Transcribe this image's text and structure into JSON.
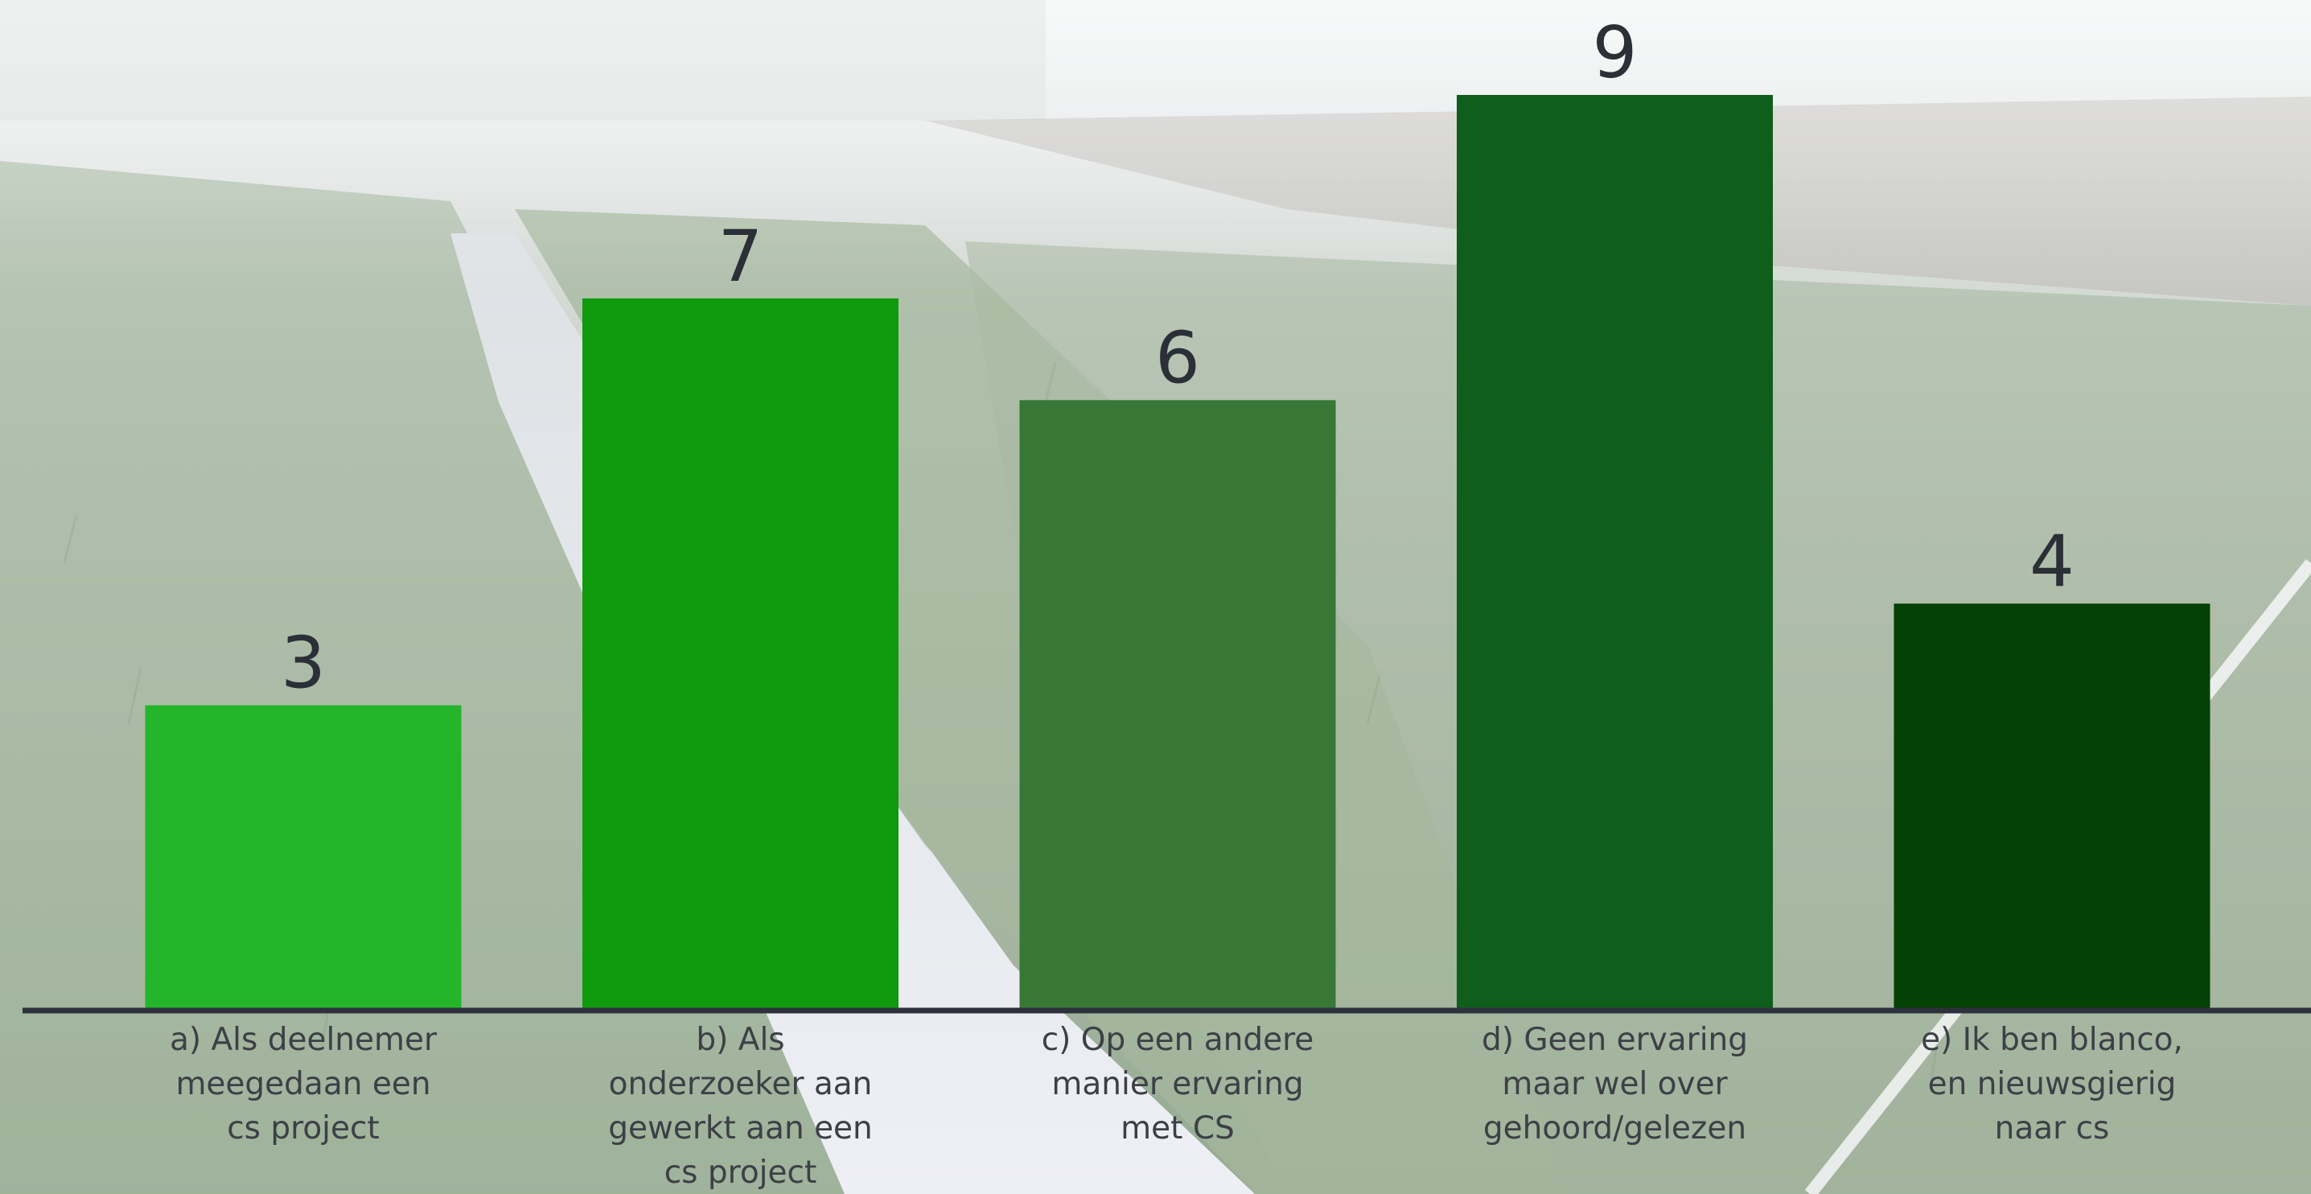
{
  "chart_data": {
    "type": "bar",
    "categories": [
      "a) Als deelnemer meegedaan een cs project",
      "b) Als onderzoeker aan gewerkt aan een cs project",
      "c) Op een andere manier ervaring met CS",
      "d) Geen ervaring maar wel over gehoord/gelezen",
      "e) Ik ben blanco, en nieuwsgierig naar cs"
    ],
    "category_lines": [
      [
        "a) Als deelnemer",
        "meegedaan een",
        "cs project"
      ],
      [
        "b) Als",
        "onderzoeker aan",
        "gewerkt aan een",
        "cs project"
      ],
      [
        "c) Op een andere",
        "manier ervaring",
        "met CS"
      ],
      [
        "d) Geen ervaring",
        "maar wel over",
        "gehoord/gelezen"
      ],
      [
        "e) Ik ben blanco,",
        "en nieuwsgierig",
        "naar cs"
      ]
    ],
    "values": [
      3,
      7,
      6,
      9,
      4
    ],
    "data_labels": [
      "3",
      "7",
      "6",
      "9",
      "4"
    ],
    "bar_colors": [
      "#24b52a",
      "#0f9a0e",
      "#387736",
      "#0f5e1c",
      "#044104"
    ],
    "ylim": [
      0,
      9
    ],
    "grid": false,
    "legend": "none",
    "title": "",
    "xlabel": "",
    "ylabel": ""
  },
  "colors": {
    "axis": "#2d313b",
    "value_text": "#2b2f36",
    "label_text": "#3c4046"
  }
}
